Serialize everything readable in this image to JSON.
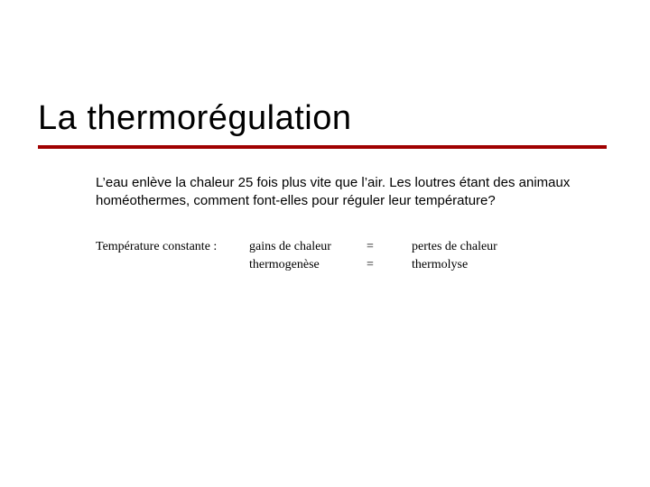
{
  "colors": {
    "background": "#ffffff",
    "text": "#000000",
    "accent": "#a00000"
  },
  "typography": {
    "title_fontsize": 38,
    "body_fontsize": 15,
    "equation_fontsize": 14,
    "title_font": "Verdana",
    "equation_font": "Times New Roman"
  },
  "title": "La thermorégulation",
  "body": "L’eau enlève la chaleur 25 fois plus vite que l’air. Les loutres étant des animaux homéothermes, comment font-elles pour réguler leur température?",
  "equation": {
    "rows": [
      {
        "label": "Température constante :",
        "left": "gains de chaleur",
        "eq": "=",
        "right": "pertes de chaleur"
      },
      {
        "label": "",
        "left": "thermogenèse",
        "eq": "=",
        "right": "thermolyse"
      }
    ]
  }
}
